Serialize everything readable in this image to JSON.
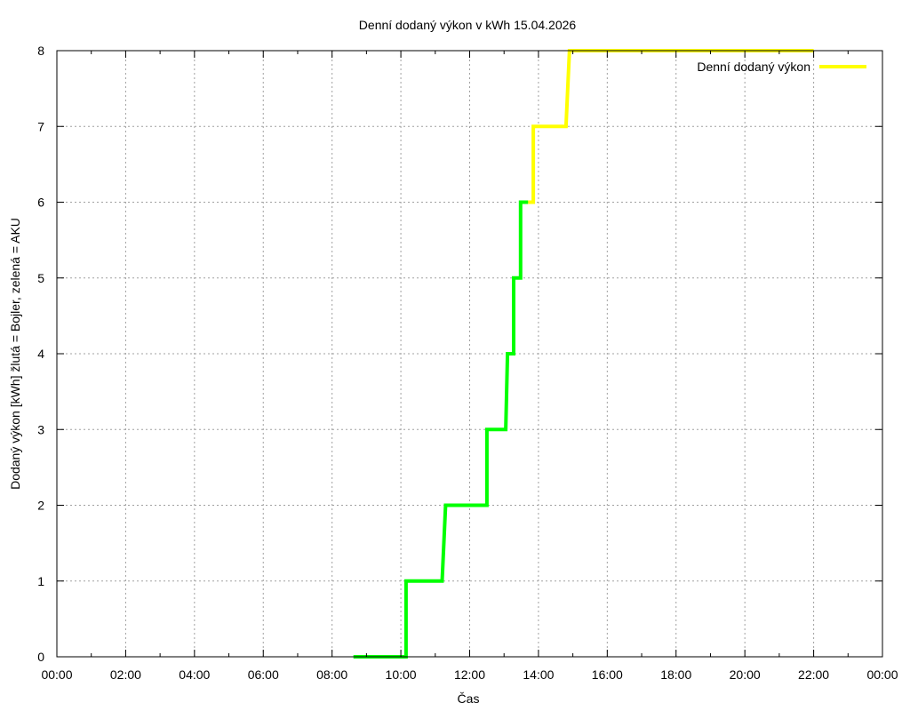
{
  "chart_data": {
    "type": "line",
    "title": "Denní dodaný výkon v kWh 15.04.2026",
    "xlabel": "Čas",
    "ylabel": "Dodaný výkon [kWh]  žlutá = Bojler, zelená = AKU",
    "x_unit": "hours",
    "xlim": [
      0,
      24
    ],
    "ylim": [
      0,
      8
    ],
    "x_ticks": [
      0,
      2,
      4,
      6,
      8,
      10,
      12,
      14,
      16,
      18,
      20,
      22,
      24
    ],
    "x_tick_labels": [
      "00:00",
      "02:00",
      "04:00",
      "06:00",
      "08:00",
      "10:00",
      "12:00",
      "14:00",
      "16:00",
      "18:00",
      "20:00",
      "22:00",
      "00:00"
    ],
    "y_ticks": [
      0,
      1,
      2,
      3,
      4,
      5,
      6,
      7,
      8
    ],
    "y_tick_labels": [
      "0",
      "1",
      "2",
      "3",
      "4",
      "5",
      "6",
      "7",
      "8"
    ],
    "grid": true,
    "legend_position": "top-right",
    "legend_entries": [
      {
        "label": "Denní dodaný výkon",
        "color": "#ffff00"
      }
    ],
    "series": [
      {
        "color": "#00ff00",
        "style": "step",
        "points": [
          [
            8.62,
            0
          ],
          [
            10.15,
            0
          ],
          [
            10.15,
            1
          ],
          [
            11.2,
            1
          ],
          [
            11.3,
            2
          ],
          [
            12.5,
            2
          ],
          [
            12.5,
            3
          ],
          [
            13.05,
            3
          ],
          [
            13.1,
            4
          ],
          [
            13.28,
            4
          ],
          [
            13.28,
            5
          ],
          [
            13.48,
            5
          ],
          [
            13.48,
            6
          ],
          [
            13.7,
            6
          ]
        ]
      },
      {
        "color": "#ffff00",
        "style": "step",
        "points": [
          [
            13.7,
            6
          ],
          [
            13.85,
            6
          ],
          [
            13.85,
            7
          ],
          [
            14.8,
            7
          ],
          [
            14.9,
            8
          ],
          [
            15.1,
            8
          ],
          [
            19.6,
            8
          ],
          [
            19.7,
            8
          ],
          [
            21.8,
            8
          ],
          [
            22.0,
            8
          ]
        ]
      }
    ]
  }
}
